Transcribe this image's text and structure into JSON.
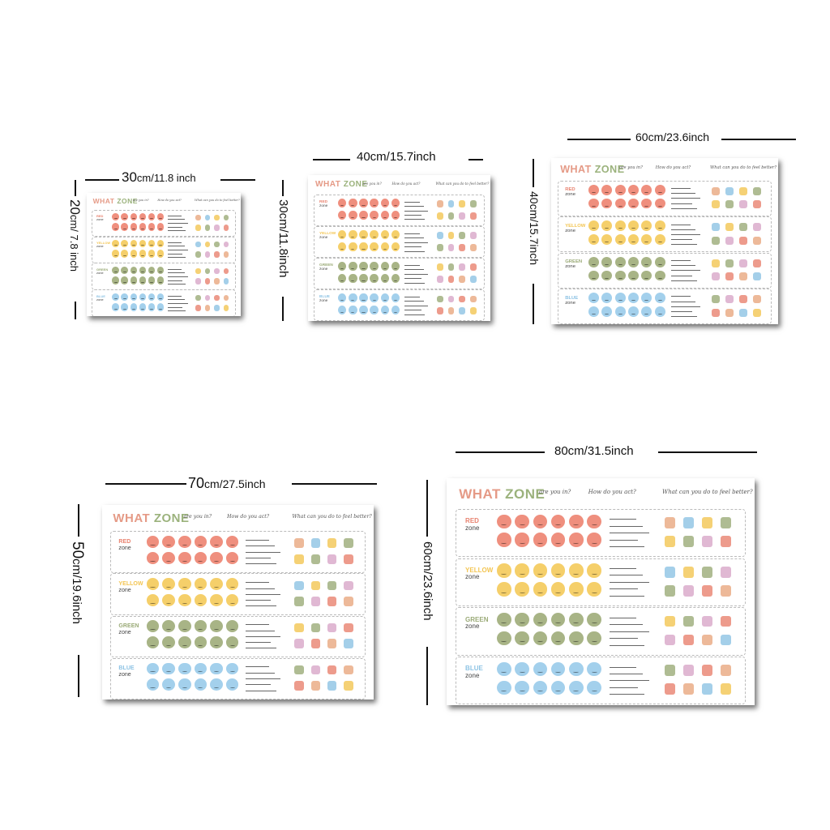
{
  "image": {
    "description_free": true
  },
  "dimensions": [
    {
      "id": "p1",
      "width_label_cm": "30",
      "width_label_inch": "cm/11.8 inch",
      "height_label_cm": "20",
      "height_label_inch": "cm/ 7.8 inch"
    },
    {
      "id": "p2",
      "width_label": "40cm/15.7inch",
      "height_label": "30cm/11.8inch"
    },
    {
      "id": "p3",
      "width_label": "60cm/23.6inch",
      "height_label": "40cm/15.7inch"
    },
    {
      "id": "p4",
      "width_label_cm": "70",
      "width_label_inch": "cm/27.5inch",
      "height_label_cm": "50",
      "height_label_inch": "cm/19.6inch"
    },
    {
      "id": "p5",
      "width_label": "80cm/31.5inch",
      "height_label": "60cm/23.6inch"
    }
  ],
  "poster": {
    "title_what": "WHAT ",
    "title_zone": "ZONE",
    "q1": "are you in?",
    "q2": "How do you act?",
    "q3": "What can you do to feel better?",
    "zones": [
      {
        "name": "RED",
        "sub": "zone",
        "color": "#e8826f"
      },
      {
        "name": "YELLOW",
        "sub": "zone",
        "color": "#f3c552"
      },
      {
        "name": "GREEN",
        "sub": "zone",
        "color": "#9bab78"
      },
      {
        "name": "BLUE",
        "sub": "zone",
        "color": "#8dc3e4"
      }
    ]
  },
  "colors": {
    "red_face": "#ef8f7e",
    "yellow_face": "#f5cf6a",
    "green_face": "#a8b486",
    "blue_face": "#a3d0ec",
    "title": "#e59a86"
  }
}
